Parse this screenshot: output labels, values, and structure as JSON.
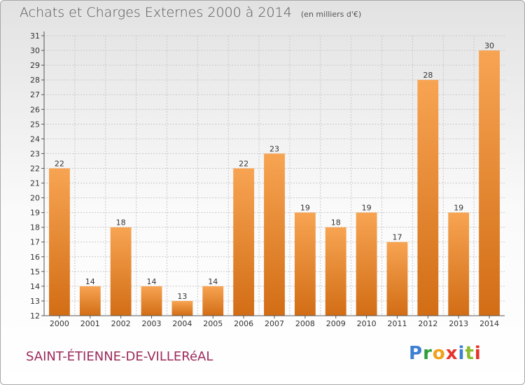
{
  "title": "Achats et Charges Externes 2000 à 2014",
  "unit": "(en milliers d'€)",
  "commune": "SAINT-ÉTIENNE-DE-VILLERéAL",
  "logo": {
    "text": "Proxiti",
    "colors": [
      "#3d7fd1",
      "#2f9e3f",
      "#f0a11c",
      "#e7322b",
      "#3d7fd1",
      "#8bbd2e",
      "#e7322b"
    ]
  },
  "colors": {
    "bar_top": "#f7a452",
    "bar_bottom": "#d26d15",
    "grid": "#c9c9c9",
    "axis": "#555555",
    "text": "#333333"
  },
  "chart_data": {
    "type": "bar",
    "categories": [
      "2000",
      "2001",
      "2002",
      "2003",
      "2004",
      "2005",
      "2006",
      "2007",
      "2008",
      "2009",
      "2010",
      "2011",
      "2012",
      "2013",
      "2014"
    ],
    "values": [
      22,
      14,
      18,
      14,
      13,
      14,
      22,
      23,
      19,
      18,
      19,
      17,
      28,
      19,
      30
    ],
    "ylim": [
      12,
      31
    ],
    "yticks": [
      12,
      13,
      14,
      15,
      16,
      17,
      18,
      19,
      20,
      21,
      22,
      23,
      24,
      25,
      26,
      27,
      28,
      29,
      30,
      31
    ],
    "grid": true,
    "data_labels": true
  }
}
